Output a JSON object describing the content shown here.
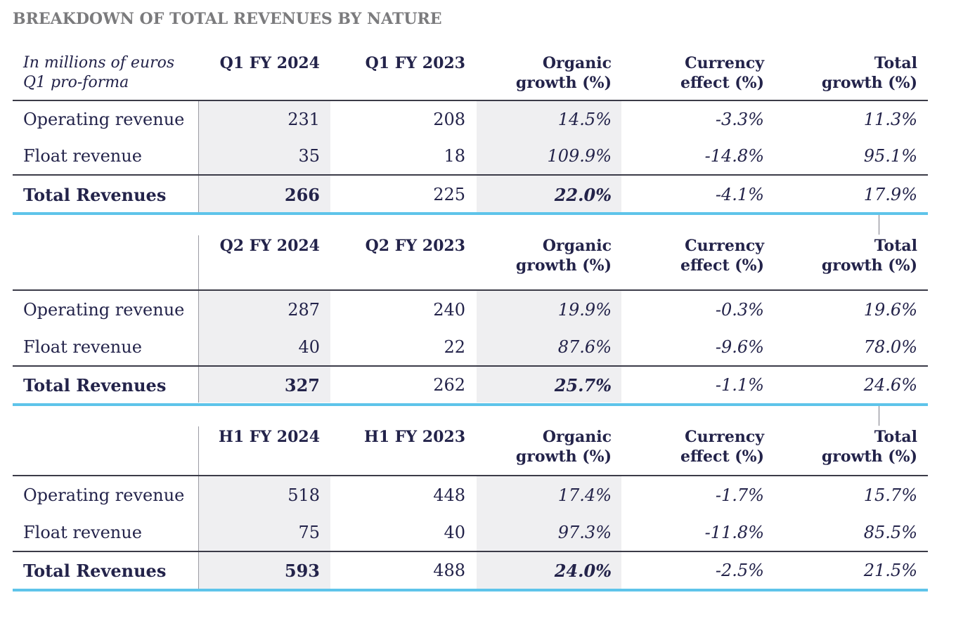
{
  "title": "BREAKDOWN OF TOTAL REVENUES BY NATURE",
  "header_labels": {
    "organic": [
      "Organic",
      "growth (%)"
    ],
    "currency": [
      "Currency",
      "effect (%)"
    ],
    "total": [
      "Total",
      "growth (%)"
    ]
  },
  "unit_note": [
    "In millions of euros",
    "Q1 pro-forma"
  ],
  "sections": [
    {
      "col_current": "Q1 FY 2024",
      "col_prior": "Q1 FY 2023",
      "rows": [
        {
          "label": "Operating revenue",
          "current": "231",
          "prior": "208",
          "organic": "14.5%",
          "currency": "-3.3%",
          "total": "11.3%"
        },
        {
          "label": "Float revenue",
          "current": "35",
          "prior": "18",
          "organic": "109.9%",
          "currency": "-14.8%",
          "total": "95.1%"
        },
        {
          "label": "Total Revenues",
          "current": "266",
          "prior": "225",
          "organic": "22.0%",
          "currency": "-4.1%",
          "total": "17.9%"
        }
      ]
    },
    {
      "col_current": "Q2 FY 2024",
      "col_prior": "Q2 FY 2023",
      "rows": [
        {
          "label": "Operating revenue",
          "current": "287",
          "prior": "240",
          "organic": "19.9%",
          "currency": "-0.3%",
          "total": "19.6%"
        },
        {
          "label": "Float revenue",
          "current": "40",
          "prior": "22",
          "organic": "87.6%",
          "currency": "-9.6%",
          "total": "78.0%"
        },
        {
          "label": "Total Revenues",
          "current": "327",
          "prior": "262",
          "organic": "25.7%",
          "currency": "-1.1%",
          "total": "24.6%"
        }
      ]
    },
    {
      "col_current": "H1 FY 2024",
      "col_prior": "H1 FY 2023",
      "rows": [
        {
          "label": "Operating revenue",
          "current": "518",
          "prior": "448",
          "organic": "17.4%",
          "currency": "-1.7%",
          "total": "15.7%"
        },
        {
          "label": "Float revenue",
          "current": "75",
          "prior": "40",
          "organic": "97.3%",
          "currency": "-11.8%",
          "total": "85.5%"
        },
        {
          "label": "Total Revenues",
          "current": "593",
          "prior": "488",
          "organic": "24.0%",
          "currency": "-2.5%",
          "total": "21.5%"
        }
      ]
    }
  ]
}
